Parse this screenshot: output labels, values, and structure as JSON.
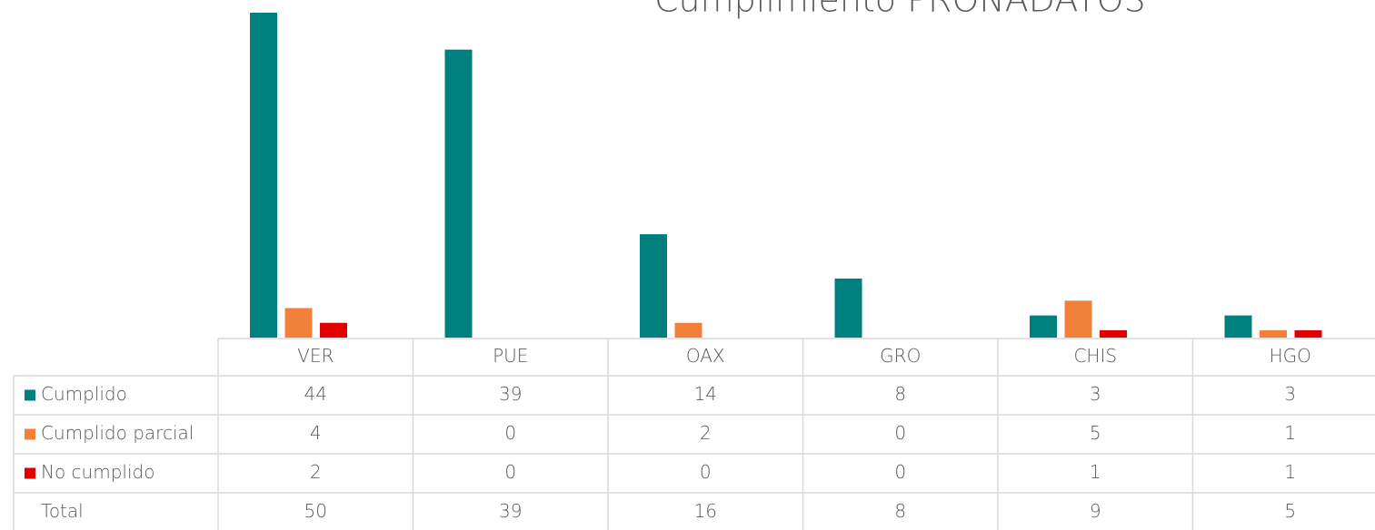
{
  "chart_data": {
    "type": "bar",
    "title": "Cumplimiento PRONADATOS",
    "categories": [
      "VER",
      "PUE",
      "OAX",
      "GRO",
      "CHIS",
      "HGO"
    ],
    "series": [
      {
        "name": "Cumplido",
        "color": "#007f7f",
        "values": [
          44,
          39,
          14,
          8,
          3,
          3
        ]
      },
      {
        "name": "Cumplido parcial",
        "color": "#f0803a",
        "values": [
          4,
          0,
          2,
          0,
          5,
          1
        ]
      },
      {
        "name": "No cumplido",
        "color": "#e00000",
        "values": [
          2,
          0,
          0,
          0,
          1,
          1
        ]
      }
    ],
    "total_label": "Total",
    "totals": [
      50,
      39,
      16,
      8,
      9,
      5
    ]
  }
}
